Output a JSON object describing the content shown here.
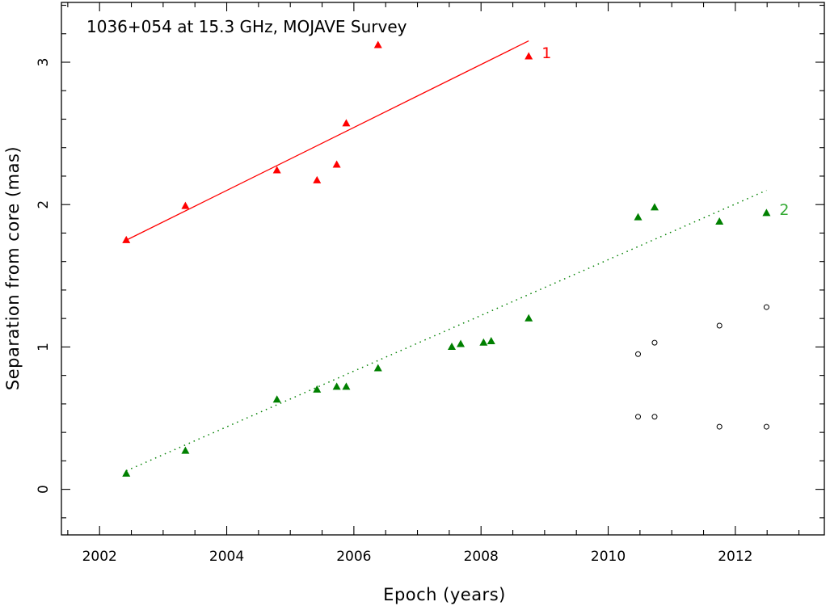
{
  "chart_data": {
    "type": "scatter",
    "title": "1036+054 at 15.3 GHz, MOJAVE Survey",
    "xlabel": "Epoch (years)",
    "ylabel": "Separation from core (mas)",
    "xlim": [
      2001.4,
      2013.4
    ],
    "ylim": [
      -0.32,
      3.42
    ],
    "xticks": [
      2002,
      2004,
      2006,
      2008,
      2010,
      2012
    ],
    "yticks": [
      0,
      1,
      2,
      3
    ],
    "grid": false,
    "series": [
      {
        "name": "1",
        "color": "#ff0000",
        "marker": "triangle",
        "x": [
          2002.42,
          2003.35,
          2004.79,
          2005.42,
          2005.73,
          2005.88,
          2006.38,
          2008.75
        ],
        "y": [
          1.75,
          1.99,
          2.24,
          2.17,
          2.28,
          2.57,
          3.12,
          3.04
        ],
        "fit": {
          "style": "solid",
          "x": [
            2002.42,
            2008.75
          ],
          "y": [
            1.75,
            3.15
          ]
        }
      },
      {
        "name": "2",
        "color": "#008000",
        "label_color": "#33aa33",
        "marker": "triangle",
        "x": [
          2002.42,
          2003.35,
          2004.79,
          2005.42,
          2005.73,
          2005.88,
          2006.38,
          2007.54,
          2007.68,
          2008.04,
          2008.16,
          2008.75,
          2010.47,
          2010.73,
          2011.75,
          2012.49
        ],
        "y": [
          0.11,
          0.27,
          0.63,
          0.7,
          0.72,
          0.72,
          0.85,
          1.0,
          1.02,
          1.03,
          1.04,
          1.2,
          1.91,
          1.98,
          1.88,
          1.94
        ],
        "fit": {
          "style": "dotted",
          "x": [
            2002.42,
            2012.49
          ],
          "y": [
            0.13,
            2.1
          ]
        }
      },
      {
        "name": "",
        "color": "#000000",
        "marker": "open-circle",
        "x": [
          2010.47,
          2010.73,
          2011.75,
          2012.49,
          2010.47,
          2010.73,
          2011.75,
          2012.49
        ],
        "y": [
          0.95,
          1.03,
          1.15,
          1.28,
          0.51,
          0.51,
          0.44,
          0.44
        ]
      }
    ]
  }
}
